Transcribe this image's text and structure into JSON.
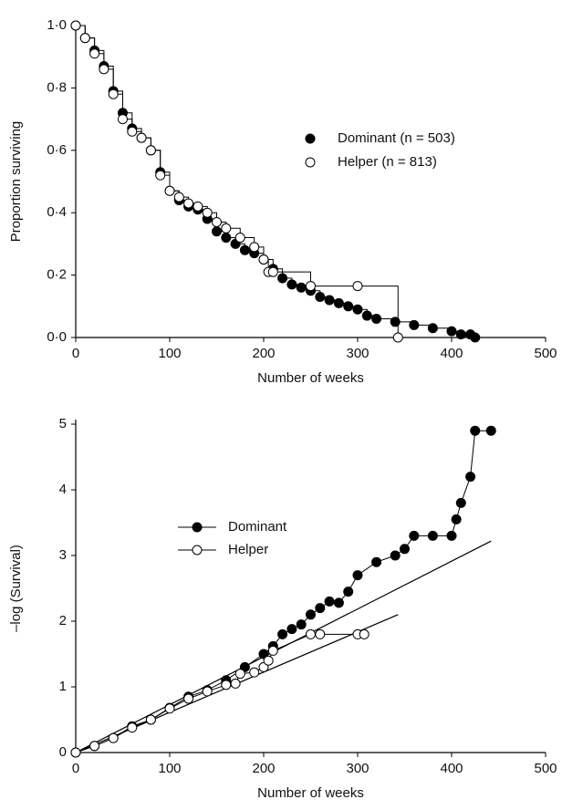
{
  "chart_data": [
    {
      "type": "line",
      "step": true,
      "xlabel": "Number of weeks",
      "ylabel": "Proportion surviving",
      "xlim": [
        0,
        500
      ],
      "xticks": [
        0,
        100,
        200,
        300,
        400,
        500
      ],
      "ylim": [
        0,
        1
      ],
      "yticks": [
        {
          "value": 0,
          "label": "0·0"
        },
        {
          "value": 0.2,
          "label": "0·2"
        },
        {
          "value": 0.4,
          "label": "0·4"
        },
        {
          "value": 0.6,
          "label": "0·6"
        },
        {
          "value": 0.8,
          "label": "0·8"
        },
        {
          "value": 1,
          "label": "1·0"
        }
      ],
      "legend": "right",
      "series": [
        {
          "name": "Dominant (n = 503)",
          "color": "#000000",
          "marker": "filled",
          "x": [
            0,
            10,
            20,
            30,
            40,
            50,
            60,
            70,
            80,
            90,
            100,
            110,
            120,
            130,
            140,
            150,
            160,
            170,
            180,
            190,
            200,
            210,
            220,
            230,
            240,
            250,
            260,
            270,
            280,
            290,
            300,
            310,
            320,
            340,
            360,
            380,
            400,
            410,
            420,
            425
          ],
          "values": [
            1.0,
            0.96,
            0.92,
            0.87,
            0.79,
            0.72,
            0.67,
            0.64,
            0.6,
            0.53,
            0.47,
            0.44,
            0.42,
            0.41,
            0.38,
            0.34,
            0.32,
            0.3,
            0.28,
            0.27,
            0.25,
            0.22,
            0.19,
            0.17,
            0.16,
            0.15,
            0.13,
            0.12,
            0.11,
            0.1,
            0.09,
            0.07,
            0.06,
            0.05,
            0.04,
            0.03,
            0.02,
            0.01,
            0.01,
            0.0
          ]
        },
        {
          "name": "Helper (n = 813)",
          "color": "#000000",
          "marker": "open",
          "x": [
            0,
            10,
            20,
            30,
            40,
            50,
            60,
            70,
            80,
            90,
            100,
            110,
            120,
            130,
            140,
            150,
            160,
            175,
            190,
            200,
            205,
            210,
            250,
            300,
            343
          ],
          "values": [
            1.0,
            0.96,
            0.91,
            0.86,
            0.78,
            0.7,
            0.66,
            0.64,
            0.6,
            0.52,
            0.47,
            0.45,
            0.43,
            0.42,
            0.4,
            0.37,
            0.35,
            0.32,
            0.29,
            0.25,
            0.21,
            0.21,
            0.165,
            0.165,
            0.0
          ]
        }
      ]
    },
    {
      "type": "line",
      "step": false,
      "xlabel": "Number of weeks",
      "ylabel": "–log (Survival)",
      "xlim": [
        0,
        500
      ],
      "xticks": [
        0,
        100,
        200,
        300,
        400,
        500
      ],
      "ylim": [
        0,
        5
      ],
      "yticks": [
        0,
        1,
        2,
        3,
        4,
        5
      ],
      "legend": "center-left",
      "series": [
        {
          "name": "Dominant",
          "color": "#000000",
          "marker": "filled",
          "x": [
            0,
            20,
            40,
            60,
            80,
            100,
            120,
            140,
            160,
            180,
            200,
            210,
            220,
            230,
            240,
            250,
            260,
            270,
            280,
            290,
            300,
            320,
            340,
            350,
            360,
            380,
            400,
            405,
            410,
            420,
            425,
            442
          ],
          "values": [
            0,
            0.1,
            0.22,
            0.4,
            0.5,
            0.68,
            0.85,
            0.95,
            1.1,
            1.3,
            1.5,
            1.62,
            1.8,
            1.88,
            1.95,
            2.1,
            2.2,
            2.3,
            2.28,
            2.45,
            2.7,
            2.9,
            3.0,
            3.1,
            3.3,
            3.3,
            3.3,
            3.55,
            3.8,
            4.2,
            4.9,
            4.9
          ]
        },
        {
          "name": "Helper",
          "color": "#000000",
          "marker": "open",
          "x": [
            0,
            20,
            40,
            60,
            80,
            100,
            120,
            140,
            160,
            170,
            175,
            190,
            200,
            205,
            210,
            250,
            260,
            300,
            307
          ],
          "values": [
            0,
            0.1,
            0.22,
            0.38,
            0.5,
            0.67,
            0.82,
            0.93,
            1.03,
            1.05,
            1.2,
            1.22,
            1.3,
            1.4,
            1.55,
            1.8,
            1.8,
            1.8,
            1.8
          ]
        }
      ],
      "fit_lines": [
        {
          "color": "#000000",
          "x": [
            0,
            442
          ],
          "values": [
            0,
            3.22
          ]
        },
        {
          "color": "#000000",
          "x": [
            0,
            343
          ],
          "values": [
            0,
            2.1
          ]
        }
      ]
    }
  ]
}
